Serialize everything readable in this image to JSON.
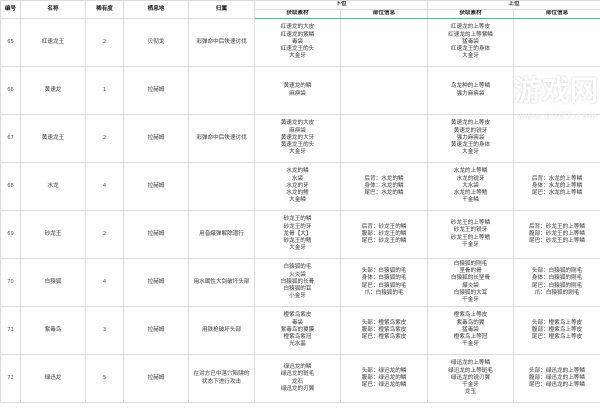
{
  "headers": {
    "id": "编号",
    "name": "名称",
    "rarity": "稀有度",
    "habitat": "栖息地",
    "attribute": "归属",
    "low_rank": "下位",
    "high_rank": "上位",
    "materials": "获取素材",
    "parts": "部位信息"
  },
  "rows": [
    {
      "id": "65",
      "name": "红速龙王",
      "rarity": "2",
      "habitat": "贝彻戈",
      "note": "彩弹命中后快速讨伐",
      "low_mat": "红速龙的大皮\n红速龙的紫鳞\n毒袋\n红速龙王的头\n大金牙",
      "low_parts": "",
      "high_mat": "红速龙的上等皮\n红速龙的上等紫鳞\n猛毒袋\n红速龙王的身体\n大金牙",
      "high_parts": ""
    },
    {
      "id": "66",
      "name": "黄速龙",
      "rarity": "1",
      "habitat": "拉赫姆",
      "note": "",
      "low_mat": "黄速龙的鳞\n麻痹袋",
      "low_parts": "",
      "high_mat": "鸟龙种的上等鳞\n强力麻痹袋",
      "high_parts": ""
    },
    {
      "id": "67",
      "name": "黄速龙王",
      "rarity": "2",
      "habitat": "拉赫姆",
      "note": "彩弹命中后快速讨伐",
      "low_mat": "黄速龙的大皮\n麻痹袋\n黄速龙的大牙\n黄速龙王的头\n大金牙",
      "low_parts": "",
      "high_mat": "黄速龙的上等皮\n黄速龙的锐牙\n强力麻痹袋\n黄速龙王的身体\n大金牙",
      "high_parts": ""
    },
    {
      "id": "68",
      "name": "水龙",
      "rarity": "4",
      "habitat": "拉赫姆",
      "note": "",
      "low_mat": "水龙的鳞\n水袋\n水龙的牙\n水龙的鳍\n大金鳞",
      "low_parts": "后背：水龙的鳞\n身体：水龙的鳞\n尾巴：水龙的鳞",
      "high_mat": "水龙的上等鳞\n水龙的锐牙\n大水袋\n水龙的上等鳍\n千金鳞",
      "high_parts": "后背：水龙的上等鳞\n身体：水龙的上等鳞\n尾巴：水龙的上等鳞"
    },
    {
      "id": "69",
      "name": "砂龙王",
      "rarity": "2",
      "habitat": "拉赫姆",
      "note": "用音爆弹解除潜行",
      "low_mat": "砂龙王的鳞\n砂龙王的牙\n龙骨【大】\n砂龙王的鳍\n大金牙",
      "low_parts": "后背：砂龙王的鳞\n腹部：砂龙王的鳞\n尾巴：砂龙王的鳞",
      "high_mat": "砂龙王的上等鳞\n砂龙王的锐牙\n砂龙王的上等鳍\n千金牙",
      "high_parts": "后背：砂龙王的上等鳞\n腹部：砂龙王的上等鳞\n尾巴：砂龙王的上等鳞"
    },
    {
      "id": "70",
      "name": "白猿狐",
      "rarity": "4",
      "habitat": "拉赫姆",
      "note": "用水属性大剑破坏头部",
      "low_mat": "白猿狐的毛\n火炎袋\n白猿狐的长骨\n白猿狐的耳\n小金牙",
      "low_parts": "头部：白猿狐的毛\n身体：白猿狐的毛\n尾巴：白猿狐的毛\n爪：白猿狐的毛",
      "high_mat": "白猿狐的刚毛\n坚骨的骨\n白猿狐的长坚骨\n爆炎袋\n白猿狐的大耳\n千金牙",
      "high_parts": "头部：白猿狐的刚毛\n身体：白猿狐的刚毛\n尾巴：白猿狐的刚毛\n爪：白猿狐的刚毛"
    },
    {
      "id": "71",
      "name": "紫毒鸟",
      "rarity": "3",
      "habitat": "拉赫姆",
      "note": "用铁枪破坏头部",
      "low_mat": "橙紫鸟紫皮\n毒袋\n紫毒鸟的翼膜\n橙紫鸟紫冠\n光水晶",
      "low_parts": "头部：橙紫鸟紫皮\n腹部：橙紫鸟紫皮\n尾巴：橙紫鸟紫皮",
      "high_mat": "橙紫鸟上等皮\n紫毒鸟的翼\n猛毒袋\n橙紫鸟上等冠\n千金牙",
      "high_parts": "头部：橙紫鸟上等皮\n腹部：橙紫鸟上等皮\n尾巴：橙紫鸟上等皮"
    },
    {
      "id": "72",
      "name": "绿迅龙",
      "rarity": "5",
      "habitat": "拉赫姆",
      "note": "在对方已中落穴陷阱的\n状态下进行攻击",
      "low_mat": "绿迅龙的鳞\n绿迅龙的斑毛\n龙石\n绿迅龙的刃翼",
      "low_parts": "头部：绿迅龙的鳞\n腹部：绿迅龙的鳞\n尾巴：绿迅龙的鳞",
      "high_mat": "绿迅龙的上等鳞\n绿迅龙的上等斑毛\n绿迅龙的锐刃翼\n千金牙\n龙玉",
      "high_parts": "头部：绿迅龙的上等鳞\n腹部：绿迅龙的上等鳞\n尾巴：绿迅龙的上等鳞"
    }
  ],
  "watermark": {
    "logo": "0707",
    "site": "游戏网",
    "url": "www.0707.com"
  }
}
